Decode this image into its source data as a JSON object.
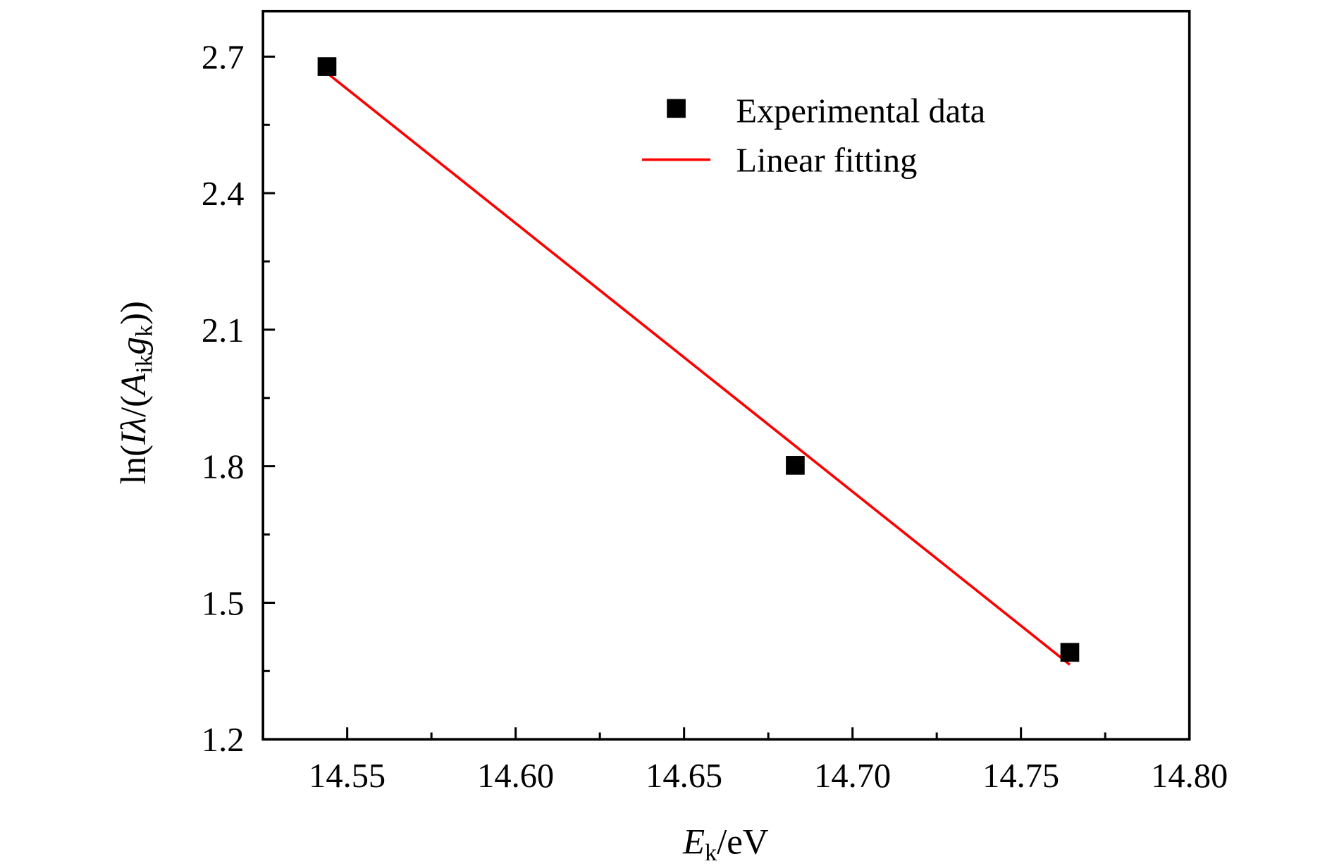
{
  "chart_data": {
    "type": "scatter",
    "title": "",
    "xlabel": {
      "main": "E",
      "sub": "k",
      "unit": "/eV"
    },
    "ylabel": "ln(Iλ/(A_ik g_k))",
    "xlim": [
      14.525,
      14.8
    ],
    "ylim": [
      1.2,
      2.8
    ],
    "xticks": [
      "14.55",
      "14.60",
      "14.65",
      "14.70",
      "14.75",
      "14.80"
    ],
    "yticks": [
      "1.2",
      "1.5",
      "1.8",
      "2.1",
      "2.4",
      "2.7"
    ],
    "grid": false,
    "legend_position": "top-right",
    "series": [
      {
        "name": "Experimental data",
        "kind": "scatter",
        "marker": "square",
        "color": "#000000",
        "x": [
          14.544,
          14.683,
          14.7645
        ],
        "y": [
          2.678,
          1.802,
          1.391
        ]
      },
      {
        "name": "Linear fitting",
        "kind": "line",
        "color": "#ff0000",
        "x": [
          14.544,
          14.7645
        ],
        "y": [
          2.664,
          1.364
        ]
      }
    ]
  }
}
